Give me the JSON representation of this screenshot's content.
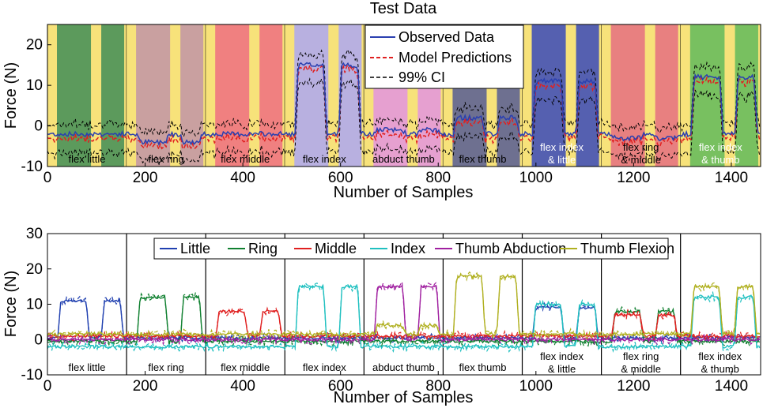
{
  "chart_data": [
    {
      "type": "line",
      "title": "Test Data",
      "xlabel": "Number of Samples",
      "ylabel": "Force (N)",
      "xlim": [
        0,
        1460
      ],
      "ylim": [
        -10,
        25
      ],
      "xticks": [
        0,
        200,
        400,
        600,
        800,
        1000,
        1200,
        1400
      ],
      "yticks": [
        -10,
        0,
        10,
        20
      ],
      "legend": [
        "Observed Data",
        "Model Predictions",
        "99% CI"
      ],
      "series_colors": [
        "#2a3fb0",
        "#e02020",
        "#000000"
      ],
      "segments": [
        {
          "label": "flex little",
          "label2": "",
          "start": 0,
          "end": 162,
          "color": "#5c9a5c"
        },
        {
          "label": "flex ring",
          "label2": "",
          "start": 162,
          "end": 324,
          "color": "#c9a0a0"
        },
        {
          "label": "flex middle",
          "label2": "",
          "start": 324,
          "end": 486,
          "color": "#f08080"
        },
        {
          "label": "flex index",
          "label2": "",
          "start": 486,
          "end": 648,
          "color": "#b8b0e0"
        },
        {
          "label": "abduct thumb",
          "label2": "",
          "start": 648,
          "end": 810,
          "color": "#e6a0d0"
        },
        {
          "label": "flex thumb",
          "label2": "",
          "start": 810,
          "end": 972,
          "color": "#6e7090"
        },
        {
          "label": "flex index",
          "label2": "& little",
          "start": 972,
          "end": 1134,
          "color": "#5560b0"
        },
        {
          "label": "flex ring",
          "label2": "& middle",
          "start": 1134,
          "end": 1296,
          "color": "#e88080"
        },
        {
          "label": "flex index",
          "label2": "& thumb",
          "start": 1296,
          "end": 1460,
          "color": "#78c060"
        }
      ]
    },
    {
      "type": "line",
      "title": "",
      "xlabel": "Number of Samples",
      "ylabel": "Force (N)",
      "xlim": [
        0,
        1460
      ],
      "ylim": [
        -10,
        30
      ],
      "xticks": [
        0,
        200,
        400,
        600,
        800,
        1000,
        1200,
        1400
      ],
      "yticks": [
        -10,
        0,
        10,
        20,
        30
      ],
      "legend": [
        "Little",
        "Ring",
        "Middle",
        "Index",
        "Thumb Abduction",
        "Thumb Flexion"
      ],
      "series_colors": [
        "#2040b0",
        "#108030",
        "#e02020",
        "#20c0c0",
        "#a020a0",
        "#b0b020"
      ],
      "segment_labels": [
        {
          "label": "flex little",
          "label2": ""
        },
        {
          "label": "flex ring",
          "label2": ""
        },
        {
          "label": "flex middle",
          "label2": ""
        },
        {
          "label": "flex index",
          "label2": ""
        },
        {
          "label": "abduct thumb",
          "label2": ""
        },
        {
          "label": "flex thumb",
          "label2": ""
        },
        {
          "label": "flex index",
          "label2": "& little"
        },
        {
          "label": "flex ring",
          "label2": "& middle"
        },
        {
          "label": "flex index",
          "label2": "& thumb"
        }
      ],
      "dividers": [
        162,
        324,
        486,
        648,
        810,
        972,
        1134,
        1296
      ],
      "peaks": [
        {
          "segment": 0,
          "series": [
            0
          ],
          "values": [
            11
          ]
        },
        {
          "segment": 1,
          "series": [
            1
          ],
          "values": [
            12
          ]
        },
        {
          "segment": 2,
          "series": [
            2
          ],
          "values": [
            8
          ]
        },
        {
          "segment": 3,
          "series": [
            3
          ],
          "values": [
            15
          ]
        },
        {
          "segment": 4,
          "series": [
            4,
            5
          ],
          "values": [
            15,
            4
          ]
        },
        {
          "segment": 5,
          "series": [
            5
          ],
          "values": [
            18
          ]
        },
        {
          "segment": 6,
          "series": [
            3,
            0
          ],
          "values": [
            10,
            9
          ]
        },
        {
          "segment": 7,
          "series": [
            1,
            2
          ],
          "values": [
            8,
            7
          ]
        },
        {
          "segment": 8,
          "series": [
            5,
            3
          ],
          "values": [
            15,
            12
          ]
        }
      ]
    }
  ]
}
